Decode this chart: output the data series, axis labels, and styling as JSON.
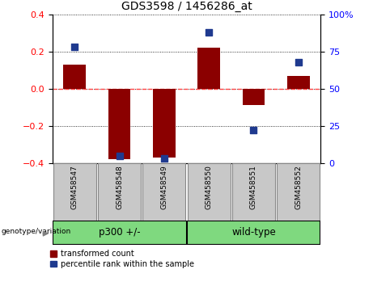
{
  "title": "GDS3598 / 1456286_at",
  "samples": [
    "GSM458547",
    "GSM458548",
    "GSM458549",
    "GSM458550",
    "GSM458551",
    "GSM458552"
  ],
  "red_values": [
    0.13,
    -0.38,
    -0.37,
    0.22,
    -0.09,
    0.07
  ],
  "blue_values": [
    78,
    5,
    3,
    88,
    22,
    68
  ],
  "group1_label": "p300 +/-",
  "group1_indices": [
    0,
    1,
    2
  ],
  "group2_label": "wild-type",
  "group2_indices": [
    3,
    4,
    5
  ],
  "group_row_label": "genotype/variation",
  "ylim_left": [
    -0.4,
    0.4
  ],
  "ylim_right": [
    0,
    100
  ],
  "yticks_left": [
    -0.4,
    -0.2,
    0.0,
    0.2,
    0.4
  ],
  "yticks_right": [
    0,
    25,
    50,
    75,
    100
  ],
  "ytick_labels_right": [
    "0",
    "25",
    "50",
    "75",
    "100%"
  ],
  "bar_color": "#8B0000",
  "dot_color": "#1F3A8F",
  "hline_color": "#FF4444",
  "bar_width": 0.5,
  "dot_size": 35,
  "legend_red": "transformed count",
  "legend_blue": "percentile rank within the sample",
  "bg_xtick": "#C8C8C8",
  "bg_group": "#7FD97F",
  "fig_width": 4.61,
  "fig_height": 3.54
}
